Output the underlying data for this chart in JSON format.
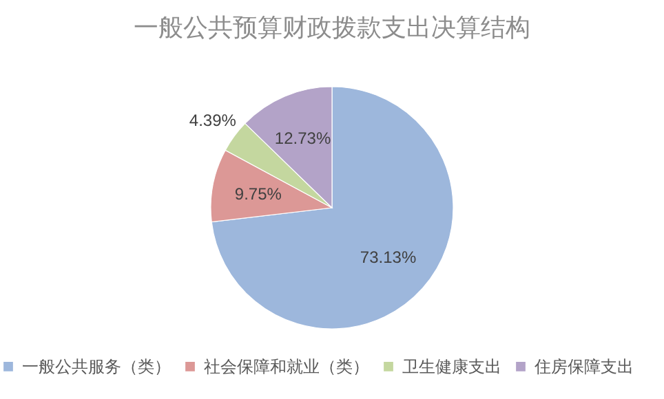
{
  "chart_data": {
    "type": "pie",
    "title": "一般公共预算财政拨款支出决算结构",
    "categories": [
      "一般公共服务（类）",
      "社会保障和就业（类）",
      "卫生健康支出",
      "住房保障支出"
    ],
    "values": [
      73.13,
      9.75,
      4.39,
      12.73
    ],
    "colors": [
      "#9db7dc",
      "#dc9896",
      "#c4d79f",
      "#b3a3c8"
    ],
    "value_labels": [
      "73.13%",
      "9.75%",
      "4.39%",
      "12.73%"
    ],
    "legend": "bottom"
  }
}
